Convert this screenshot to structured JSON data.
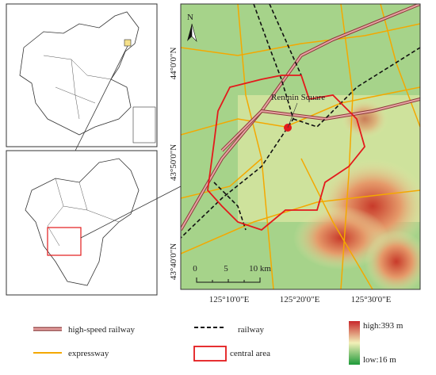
{
  "map": {
    "north": "N",
    "place_label": "Renmin Square",
    "lat_labels": [
      "44°0'0\"N",
      "43°50'0\"N",
      "43°40'0\"N"
    ],
    "lon_labels": [
      "125°10'0\"E",
      "125°20'0\"E",
      "125°30'0\"E"
    ],
    "scale_labels": [
      "0",
      "5",
      "10 km"
    ]
  },
  "legend": {
    "high_speed_railway": "high-speed railway",
    "railway": "railway",
    "elevation_high": "high:393 m",
    "expressway": "expressway",
    "central_area": "central area",
    "elevation_low": "low:16 m"
  }
}
